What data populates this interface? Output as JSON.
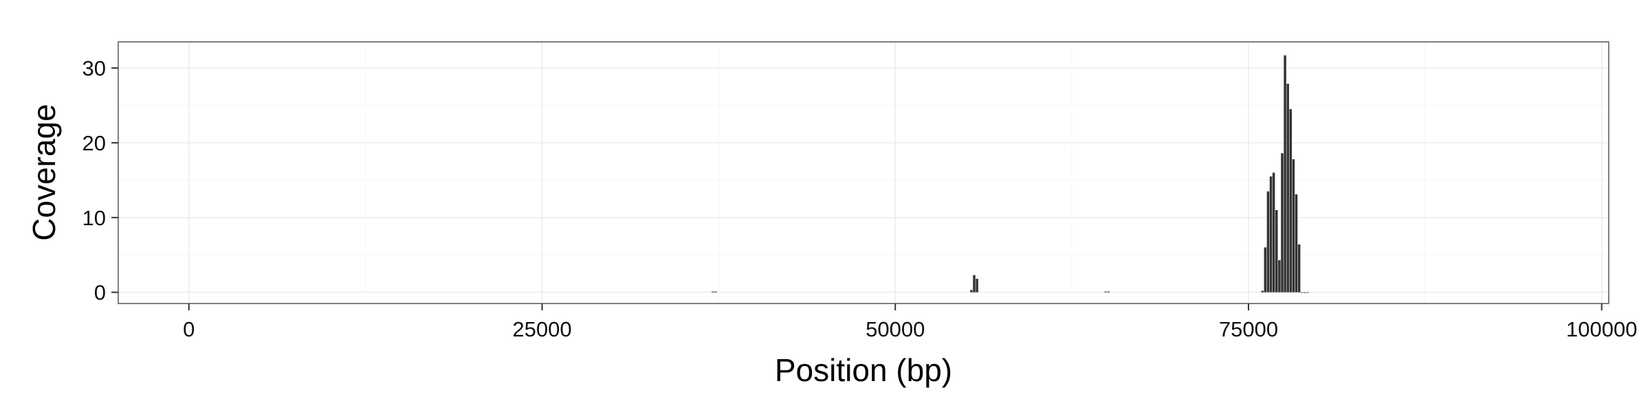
{
  "chart_data": {
    "type": "bar",
    "xlabel": "Position (bp)",
    "ylabel": "Coverage",
    "xlim": [
      -5000,
      100500
    ],
    "ylim": [
      -1.5,
      33.5
    ],
    "x_ticks": [
      0,
      25000,
      50000,
      75000,
      100000
    ],
    "x_tick_labels": [
      "0",
      "25000",
      "50000",
      "75000",
      "100000"
    ],
    "x_minor_ticks": [
      12500,
      37500,
      62500,
      87500
    ],
    "y_ticks": [
      0,
      10,
      20,
      30
    ],
    "y_tick_labels": [
      "0",
      "10",
      "20",
      "30"
    ],
    "y_minor_ticks": [
      5,
      15,
      25
    ],
    "grid": true,
    "bar_width_bp": 200,
    "bar_color": "#333333",
    "panel_background": "#ffffff",
    "grid_color": "#ebebeb",
    "series": [
      {
        "x": [
          37100,
          37300,
          55400,
          55600,
          55800,
          64900,
          65100,
          76000,
          76200,
          76400,
          76600,
          76800,
          77000,
          77200,
          77400,
          77600,
          77800,
          78000,
          78200,
          78400,
          78600,
          78800,
          79000,
          79200
        ],
        "values": [
          0.1,
          0.1,
          0.3,
          2.3,
          1.8,
          0.1,
          0.1,
          0.2,
          6,
          13.5,
          15.5,
          16,
          11,
          4.3,
          18.6,
          31.7,
          27.9,
          24.5,
          17.8,
          13.1,
          6.4,
          0,
          0,
          0
        ]
      }
    ]
  }
}
